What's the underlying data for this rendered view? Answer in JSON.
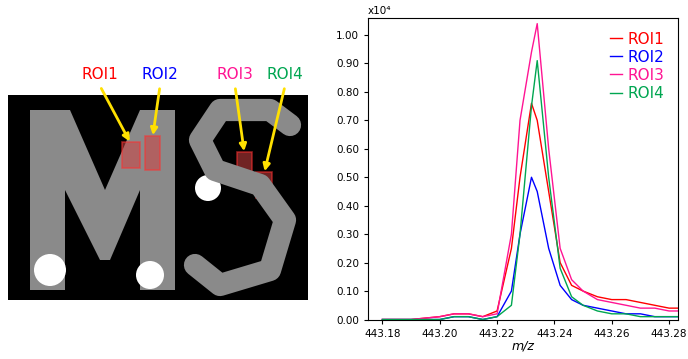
{
  "chart_data": {
    "type": "line",
    "x_label": "m/z",
    "annotations": [
      "x10⁴"
    ],
    "x": [
      443.18,
      443.19,
      443.2,
      443.205,
      443.21,
      443.215,
      443.22,
      443.225,
      443.228,
      443.232,
      443.234,
      443.238,
      443.242,
      443.246,
      443.25,
      443.255,
      443.26,
      443.265,
      443.27,
      443.275,
      443.28,
      443.283
    ],
    "series": [
      {
        "name": "ROI1",
        "color": "#ff0000",
        "values": [
          0,
          0,
          0.01,
          0.02,
          0.02,
          0.01,
          0.03,
          0.25,
          0.5,
          0.76,
          0.7,
          0.45,
          0.2,
          0.12,
          0.1,
          0.08,
          0.07,
          0.07,
          0.06,
          0.05,
          0.04,
          0.04
        ]
      },
      {
        "name": "ROI2",
        "color": "#0000ff",
        "values": [
          0,
          0,
          0,
          0.01,
          0.01,
          0,
          0.01,
          0.1,
          0.3,
          0.5,
          0.45,
          0.25,
          0.12,
          0.07,
          0.05,
          0.04,
          0.03,
          0.02,
          0.02,
          0.01,
          0.01,
          0.01
        ]
      },
      {
        "name": "ROI3",
        "color": "#ff1493",
        "values": [
          0,
          0,
          0.01,
          0.02,
          0.02,
          0.01,
          0.02,
          0.3,
          0.7,
          0.94,
          1.04,
          0.6,
          0.25,
          0.14,
          0.1,
          0.07,
          0.06,
          0.05,
          0.04,
          0.04,
          0.03,
          0.03
        ]
      },
      {
        "name": "ROI4",
        "color": "#00a651",
        "values": [
          0,
          0,
          0,
          0.01,
          0.01,
          0,
          0.01,
          0.05,
          0.3,
          0.75,
          0.91,
          0.5,
          0.18,
          0.08,
          0.05,
          0.03,
          0.02,
          0.02,
          0.01,
          0.01,
          0.01,
          0.01
        ]
      }
    ],
    "xlim": [
      443.175,
      443.283
    ],
    "xticks": [
      443.18,
      {
        "value": 443.2,
        "label": "443.20"
      },
      443.22,
      443.24,
      443.26,
      443.28
    ],
    "ylim": [
      0,
      1.06
    ],
    "yticks": [
      {
        "value": 0,
        "label": "0.00"
      },
      {
        "value": 0.1,
        "label": "0.10"
      },
      {
        "value": 0.2,
        "label": "0.20"
      },
      {
        "value": 0.3,
        "label": "0.30"
      },
      {
        "value": 0.4,
        "label": "0.40"
      },
      {
        "value": 0.5,
        "label": "0.50"
      },
      {
        "value": 0.6,
        "label": "0.60"
      },
      {
        "value": 0.7,
        "label": "0.70"
      },
      {
        "value": 0.8,
        "label": "0.80"
      },
      {
        "value": 0.9,
        "label": "0.90"
      },
      {
        "value": 1.0,
        "label": "1.00"
      }
    ],
    "legend": "upper right"
  }
}
